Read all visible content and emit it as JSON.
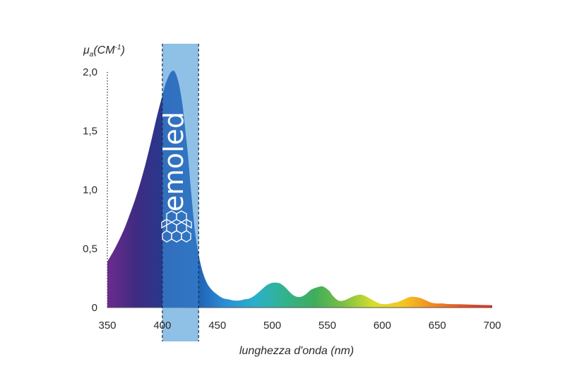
{
  "chart_data": {
    "type": "area",
    "ylabel_main": "μ",
    "ylabel_sub": "a",
    "ylabel_unit": "(CM",
    "ylabel_exp": "-1",
    "ylabel_close": ")",
    "xlabel": "lunghezza d'onda (nm)",
    "xlim": [
      350,
      700
    ],
    "ylim": [
      0,
      2.0
    ],
    "x_ticks": [
      "350",
      "400",
      "450",
      "500",
      "550",
      "600",
      "650",
      "700"
    ],
    "x_tick_values": [
      350,
      400,
      450,
      500,
      550,
      600,
      650,
      700
    ],
    "y_ticks": [
      "0",
      "0,5",
      "1,0",
      "1,5",
      "2,0"
    ],
    "y_tick_values": [
      0,
      0.5,
      1.0,
      1.5,
      2.0
    ],
    "highlight_band": [
      400,
      433
    ],
    "series": [
      {
        "x": [
          350,
          355,
          360,
          365,
          370,
          375,
          380,
          385,
          390,
          395,
          400,
          403,
          406,
          408,
          410,
          412,
          415,
          418,
          420,
          423,
          426,
          430,
          435,
          440,
          445,
          450,
          455,
          460,
          465,
          470,
          475,
          480,
          485,
          490,
          495,
          500,
          505,
          508,
          512,
          515,
          520,
          525,
          530,
          535,
          540,
          545,
          548,
          552,
          555,
          560,
          565,
          570,
          575,
          580,
          584,
          588,
          592,
          596,
          600,
          605,
          610,
          615,
          620,
          625,
          630,
          635,
          640,
          645,
          650,
          655,
          660,
          670,
          680,
          690,
          700
        ],
        "y": [
          0.39,
          0.47,
          0.56,
          0.66,
          0.78,
          0.91,
          1.06,
          1.23,
          1.42,
          1.62,
          1.8,
          1.9,
          1.97,
          2.0,
          2.01,
          1.99,
          1.9,
          1.74,
          1.58,
          1.32,
          1.0,
          0.62,
          0.36,
          0.22,
          0.15,
          0.11,
          0.08,
          0.07,
          0.06,
          0.06,
          0.07,
          0.08,
          0.11,
          0.15,
          0.19,
          0.21,
          0.21,
          0.2,
          0.17,
          0.14,
          0.1,
          0.09,
          0.11,
          0.15,
          0.17,
          0.18,
          0.17,
          0.14,
          0.1,
          0.06,
          0.06,
          0.08,
          0.1,
          0.11,
          0.1,
          0.08,
          0.06,
          0.04,
          0.03,
          0.03,
          0.04,
          0.05,
          0.07,
          0.09,
          0.09,
          0.08,
          0.06,
          0.04,
          0.035,
          0.035,
          0.03,
          0.028,
          0.025,
          0.022,
          0.02
        ]
      }
    ],
    "spectrum_colors": [
      "#6b2b8c",
      "#3d2b82",
      "#243a8f",
      "#1f5fb3",
      "#2b8fd6",
      "#2ab0c8",
      "#32b38d",
      "#3fad5b",
      "#7cc142",
      "#d7df2b",
      "#f5c521",
      "#f08a23",
      "#e35424",
      "#d8322a"
    ],
    "band_color": "#4a9ad6",
    "brand": "emoled"
  }
}
